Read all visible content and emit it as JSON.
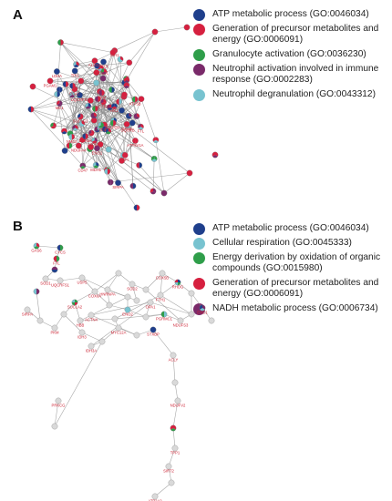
{
  "panels": [
    {
      "letter": "A",
      "legend": [
        {
          "label": "ATP metabolic process (GO:0046034)",
          "color": "#1f3f8c"
        },
        {
          "label": "Generation of precursor metabolites and energy (GO:0006091)",
          "color": "#d6203f"
        },
        {
          "label": "Granulocyte activation (GO:0036230)",
          "color": "#2f9e4a"
        },
        {
          "label": "Neutrophil activation involved in immune response (GO:0002283)",
          "color": "#7a2a6a"
        },
        {
          "label": "Neutrophil degranulation (GO:0043312)",
          "color": "#78c3d0"
        }
      ],
      "nodes": [
        {
          "id": "ACTR1B",
          "label": "ACTR1B"
        },
        {
          "id": "NDUFA4",
          "label": "NDUFA4"
        },
        {
          "id": "COX5A",
          "label": "COX5A"
        },
        {
          "id": "SUCLG2",
          "label": "SUCLG2"
        },
        {
          "id": "SUCLG1",
          "label": "SUCLG1"
        },
        {
          "id": "ACLY",
          "label": "ACLY"
        },
        {
          "id": "ATP5A1",
          "label": "ATP5A1"
        },
        {
          "id": "UQCRFS1",
          "label": "UQCRFS1"
        },
        {
          "id": "UQCRB",
          "label": "UQCRB"
        },
        {
          "id": "IDH1",
          "label": "IDH1"
        },
        {
          "id": "MDH1",
          "label": "MDH1"
        },
        {
          "id": "ME1",
          "label": "ME1"
        },
        {
          "id": "FTL",
          "label": "FTL"
        },
        {
          "id": "SIRPA",
          "label": "SIRPA"
        },
        {
          "id": "GPD2",
          "label": "GPD2"
        },
        {
          "id": "PGK1",
          "label": "PGK1"
        },
        {
          "id": "ENO1",
          "label": "ENO1"
        },
        {
          "id": "PKM",
          "label": "PKM"
        },
        {
          "id": "ALDOA",
          "label": "ALDOA"
        },
        {
          "id": "GAPDH",
          "label": "GAPDH"
        },
        {
          "id": "CD47",
          "label": "CD47"
        },
        {
          "id": "NME2",
          "label": "NME2"
        },
        {
          "id": "ATP6V1A",
          "label": "ATP6V1A"
        },
        {
          "id": "CYCS",
          "label": "CYCS"
        },
        {
          "id": "ATP5B",
          "label": "ATP5B"
        },
        {
          "id": "HK1",
          "label": "HK1"
        },
        {
          "id": "GPI",
          "label": "GPI"
        },
        {
          "id": "TPI1",
          "label": "TPI1"
        },
        {
          "id": "PGAM1",
          "label": "PGAM1"
        },
        {
          "id": "LDHA",
          "label": "LDHA"
        }
      ]
    },
    {
      "letter": "B",
      "legend": [
        {
          "label": "ATP metabolic process (GO:0046034)",
          "color": "#1f3f8c"
        },
        {
          "label": "Cellular respiration (GO:0045333)",
          "color": "#78c3d0"
        },
        {
          "label": "Energy derivation by oxidation of organic compounds (GO:0015980)",
          "color": "#2f9e4a"
        },
        {
          "label": "Generation of precursor metabolites and energy (GO:0006091)",
          "color": "#d6203f"
        },
        {
          "label": "NADH metabolic process (GO:0006734)",
          "color": "#7a2a6a"
        }
      ],
      "nodes": [
        {
          "id": "CYCS",
          "label": "CYCS"
        },
        {
          "id": "UQCRFS1",
          "label": "UQCRFS1"
        },
        {
          "id": "COX5B",
          "label": "COX5B"
        },
        {
          "id": "NDUFS3",
          "label": "NDUFS3"
        },
        {
          "id": "COX6A",
          "label": "COX6A"
        },
        {
          "id": "SIRPA",
          "label": "SIRPA"
        },
        {
          "id": "STXBP",
          "label": "STXBP"
        },
        {
          "id": "TPP1",
          "label": "TPP1"
        },
        {
          "id": "PRKCG",
          "label": "PRKCG"
        },
        {
          "id": "ACTN4",
          "label": "ACTN4"
        },
        {
          "id": "HBB",
          "label": "HBB"
        },
        {
          "id": "SOD1",
          "label": "SOD1"
        },
        {
          "id": "SOD2",
          "label": "SOD2"
        },
        {
          "id": "ENO1",
          "label": "ENO1"
        },
        {
          "id": "ENO2",
          "label": "ENO2"
        },
        {
          "id": "PKM",
          "label": "PKM"
        },
        {
          "id": "MYC12A",
          "label": "MYC12A"
        },
        {
          "id": "NDUFV2",
          "label": "NDUFV2"
        },
        {
          "id": "ATP2A2",
          "label": "ATP2A2"
        },
        {
          "id": "HNRNPA",
          "label": "HNRNPA"
        },
        {
          "id": "FTH1",
          "label": "FTH1"
        },
        {
          "id": "FTL",
          "label": "FTL"
        },
        {
          "id": "USP5",
          "label": "USP5"
        },
        {
          "id": "RHOG",
          "label": "RHOG"
        },
        {
          "id": "PGRMC1",
          "label": "PGRMC1"
        },
        {
          "id": "SUCLA2",
          "label": "SUCLA2"
        },
        {
          "id": "IDH3",
          "label": "IDH3"
        },
        {
          "id": "ACLY",
          "label": "ACLY"
        },
        {
          "id": "SIRT2",
          "label": "SIRT2"
        },
        {
          "id": "IDH3A",
          "label": "IDH3A"
        },
        {
          "id": "OPA1",
          "label": "OPA1"
        },
        {
          "id": "GAS6",
          "label": "GAS6"
        }
      ]
    }
  ],
  "colors": {
    "gray_node": "#d9d9d9",
    "edge": "#8a8a8a",
    "label": "#cc2233"
  }
}
